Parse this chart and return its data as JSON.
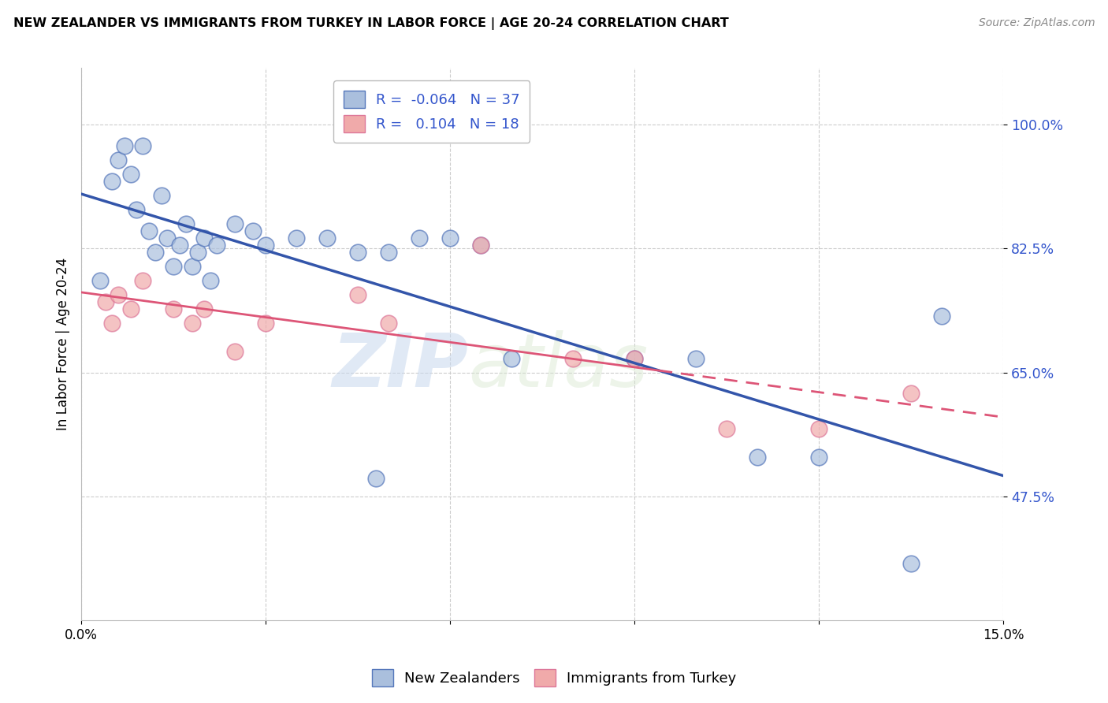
{
  "title": "NEW ZEALANDER VS IMMIGRANTS FROM TURKEY IN LABOR FORCE | AGE 20-24 CORRELATION CHART",
  "source": "Source: ZipAtlas.com",
  "ylabel": "In Labor Force | Age 20-24",
  "xlim": [
    0.0,
    15.0
  ],
  "ylim": [
    30.0,
    108.0
  ],
  "ytick_labels": [
    "47.5%",
    "65.0%",
    "82.5%",
    "100.0%"
  ],
  "yticks": [
    47.5,
    65.0,
    82.5,
    100.0
  ],
  "legend_labels": [
    "New Zealanders",
    "Immigrants from Turkey"
  ],
  "r_nz": -0.064,
  "n_nz": 37,
  "r_tr": 0.104,
  "n_tr": 18,
  "blue_color": "#aabfdd",
  "pink_color": "#f0aaaa",
  "blue_edge_color": "#5577bb",
  "pink_edge_color": "#dd7799",
  "blue_line_color": "#3355aa",
  "pink_line_color": "#dd5577",
  "text_color": "#3355cc",
  "nz_x": [
    0.3,
    0.5,
    0.6,
    0.7,
    0.8,
    0.9,
    1.0,
    1.1,
    1.2,
    1.3,
    1.4,
    1.5,
    1.6,
    1.7,
    1.8,
    1.9,
    2.0,
    2.1,
    2.2,
    2.5,
    2.8,
    3.0,
    3.5,
    4.0,
    4.5,
    4.8,
    5.0,
    5.5,
    6.0,
    6.5,
    7.0,
    9.0,
    10.0,
    11.0,
    12.0,
    13.5,
    14.0
  ],
  "nz_y": [
    78.0,
    92.0,
    95.0,
    97.0,
    93.0,
    88.0,
    97.0,
    85.0,
    82.0,
    90.0,
    84.0,
    80.0,
    83.0,
    86.0,
    80.0,
    82.0,
    84.0,
    78.0,
    83.0,
    86.0,
    85.0,
    83.0,
    84.0,
    84.0,
    82.0,
    50.0,
    82.0,
    84.0,
    84.0,
    83.0,
    67.0,
    67.0,
    67.0,
    53.0,
    53.0,
    38.0,
    73.0
  ],
  "tr_x": [
    0.4,
    0.5,
    0.6,
    0.8,
    1.0,
    1.5,
    1.8,
    2.0,
    2.5,
    3.0,
    4.5,
    5.0,
    6.5,
    8.0,
    9.0,
    10.5,
    12.0,
    13.5
  ],
  "tr_y": [
    75.0,
    72.0,
    76.0,
    74.0,
    78.0,
    74.0,
    72.0,
    74.0,
    68.0,
    72.0,
    76.0,
    72.0,
    83.0,
    67.0,
    67.0,
    57.0,
    57.0,
    62.0
  ],
  "watermark_zip": "ZIP",
  "watermark_atlas": "atlas",
  "background_color": "#FFFFFF",
  "grid_color": "#cccccc"
}
